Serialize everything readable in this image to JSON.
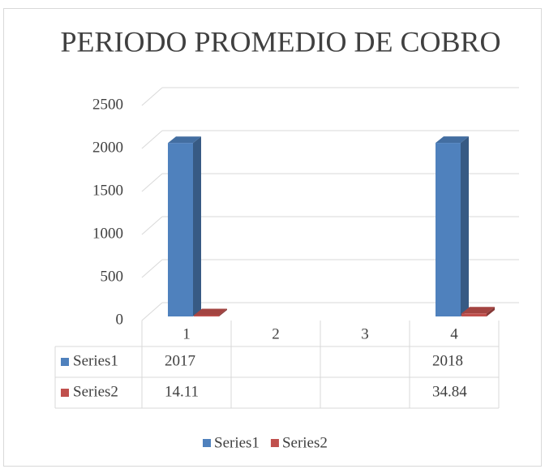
{
  "chart_data": {
    "type": "bar3d",
    "title": "PERIODO PROMEDIO DE COBRO",
    "categories": [
      "1",
      "2",
      "3",
      "4"
    ],
    "series": [
      {
        "name": "Series1",
        "color": "#4f81bd",
        "values": [
          2017,
          null,
          null,
          2018
        ]
      },
      {
        "name": "Series2",
        "color": "#c0504d",
        "values": [
          14.11,
          null,
          null,
          34.84
        ]
      }
    ],
    "ylim": [
      0,
      2500
    ],
    "yticks": [
      0,
      500,
      1000,
      1500,
      2000,
      2500
    ],
    "grid": true,
    "legend": "bottom",
    "data_table": true
  }
}
